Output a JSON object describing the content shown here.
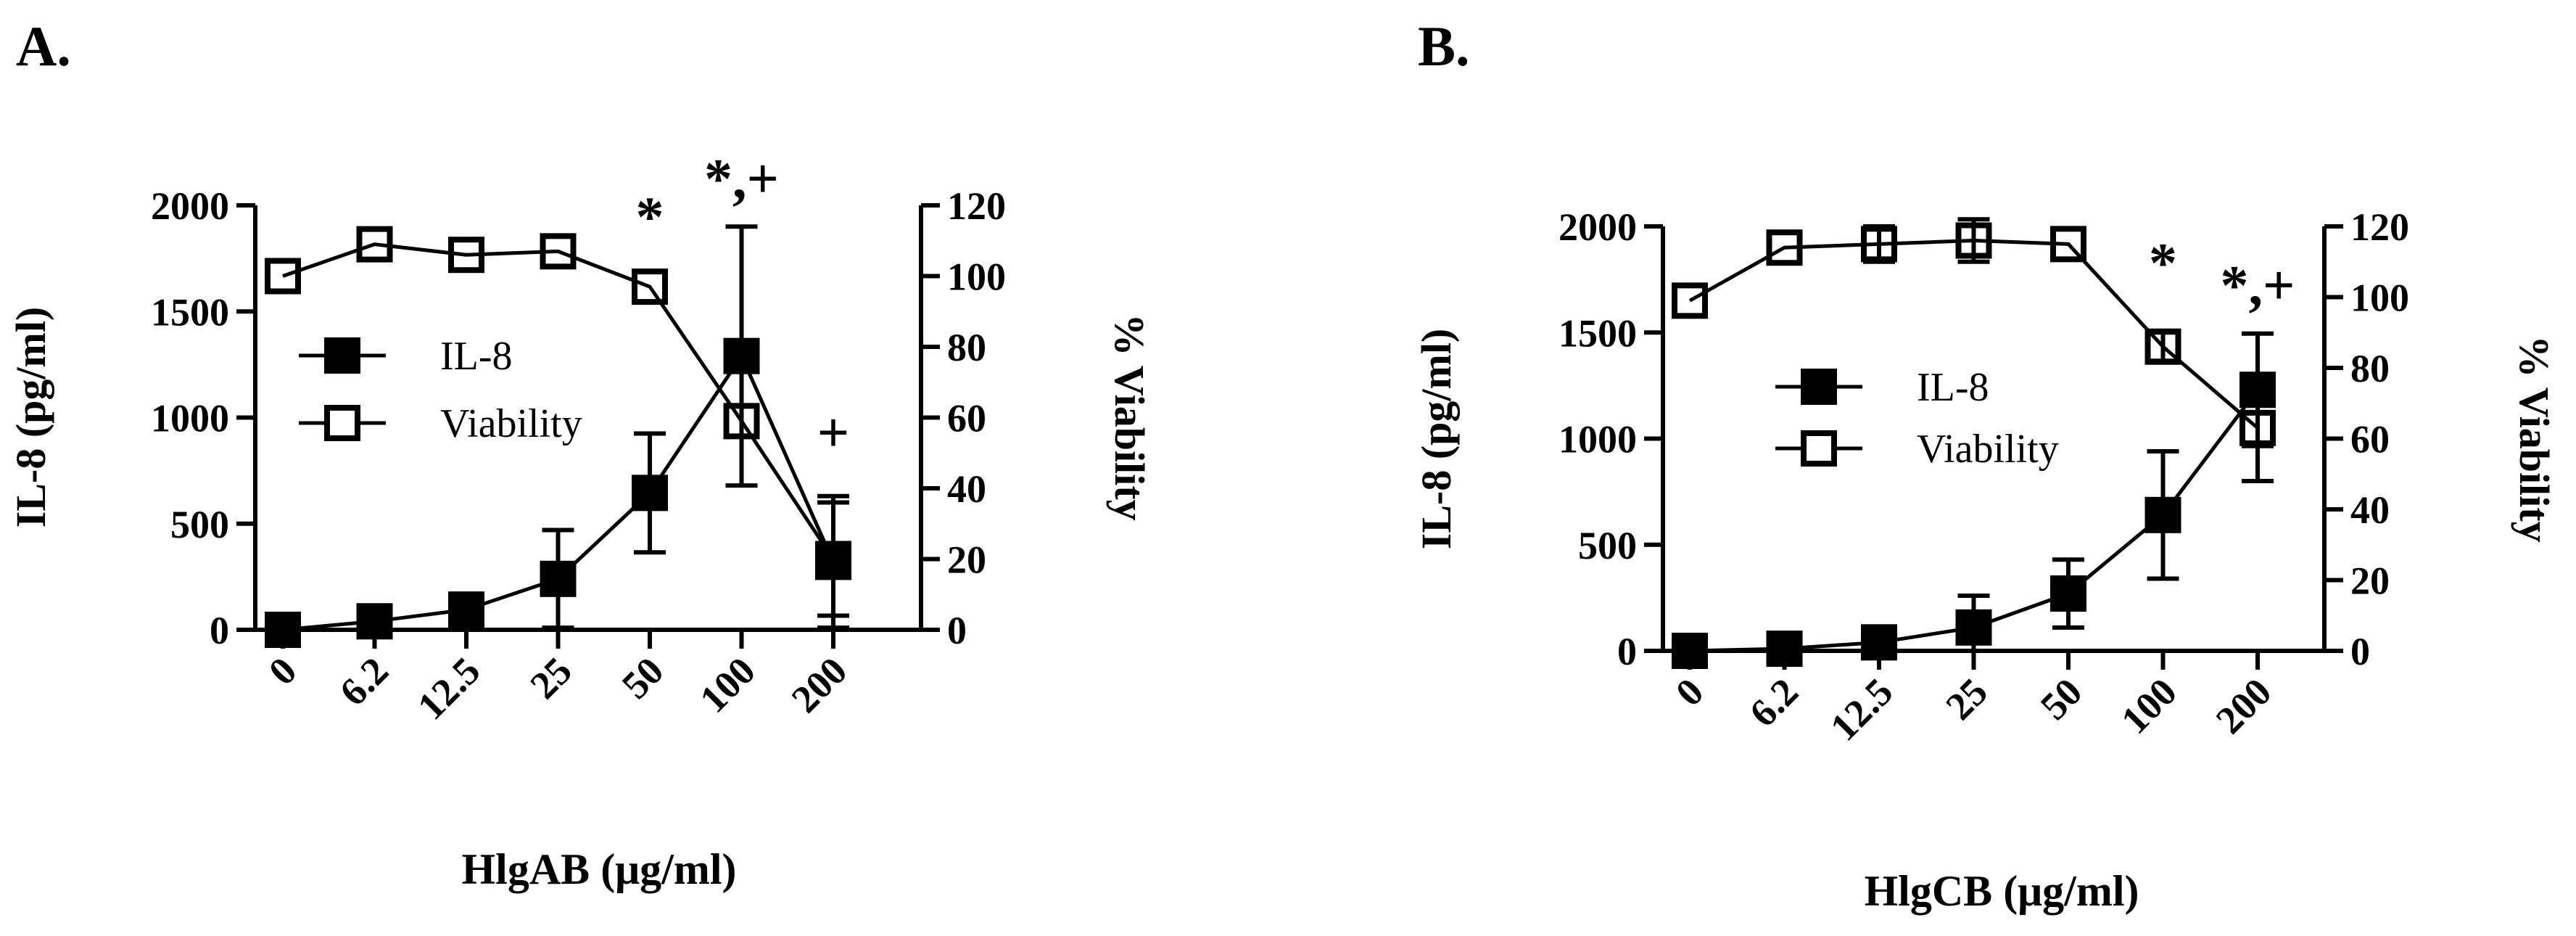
{
  "chart_data": [
    {
      "panel": "A.",
      "type": "line",
      "categories": [
        "0",
        "6.2",
        "12.5",
        "25",
        "50",
        "100",
        "200"
      ],
      "xlabel": "HlgAB (μg/ml)",
      "ylabel_left": "IL-8 (pg/ml)",
      "ylabel_right": "% Viability",
      "ylim_left": [
        0,
        2000
      ],
      "yticks_left": [
        0,
        500,
        1000,
        1500,
        2000
      ],
      "ylim_right": [
        0,
        120
      ],
      "yticks_right": [
        0,
        20,
        40,
        60,
        80,
        100,
        120
      ],
      "grid": false,
      "legend_position": "left-middle",
      "series": [
        {
          "name": "IL-8",
          "axis": "left",
          "marker": "filled-square",
          "values": [
            0,
            40,
            95,
            240,
            645,
            1290,
            320
          ],
          "error": [
            0,
            0,
            75,
            230,
            280,
            610,
            310
          ]
        },
        {
          "name": "Viability",
          "axis": "right",
          "marker": "open-square",
          "values": [
            100,
            109,
            106,
            107,
            97,
            59,
            20
          ],
          "error": [
            0,
            0,
            0,
            0,
            0,
            0,
            16
          ]
        }
      ],
      "annotations": [
        {
          "category": "50",
          "text": "*"
        },
        {
          "category": "100",
          "text": "*,+"
        },
        {
          "category": "200",
          "text": "+"
        }
      ]
    },
    {
      "panel": "B.",
      "type": "line",
      "categories": [
        "0",
        "6.2",
        "12.5",
        "25",
        "50",
        "100",
        "200"
      ],
      "xlabel": "HlgCB (μg/ml)",
      "ylabel_left": "IL-8 (pg/ml)",
      "ylabel_right": "% Viability",
      "ylim_left": [
        0,
        2000
      ],
      "yticks_left": [
        0,
        500,
        1000,
        1500,
        2000
      ],
      "ylim_right": [
        0,
        120
      ],
      "yticks_right": [
        0,
        20,
        40,
        60,
        80,
        100,
        120
      ],
      "grid": false,
      "legend_position": "left-middle",
      "series": [
        {
          "name": "IL-8",
          "axis": "left",
          "marker": "filled-square",
          "values": [
            0,
            10,
            40,
            110,
            270,
            640,
            1230
          ],
          "error": [
            0,
            0,
            0,
            150,
            160,
            300,
            265
          ]
        },
        {
          "name": "Viability",
          "axis": "right",
          "marker": "open-square",
          "values": [
            99,
            114,
            115,
            116,
            115,
            86,
            63
          ],
          "error": [
            0,
            0,
            5,
            6,
            0,
            4,
            15
          ]
        }
      ],
      "annotations": [
        {
          "category": "100",
          "text": "*"
        },
        {
          "category": "200",
          "text": "*,+"
        }
      ]
    }
  ]
}
